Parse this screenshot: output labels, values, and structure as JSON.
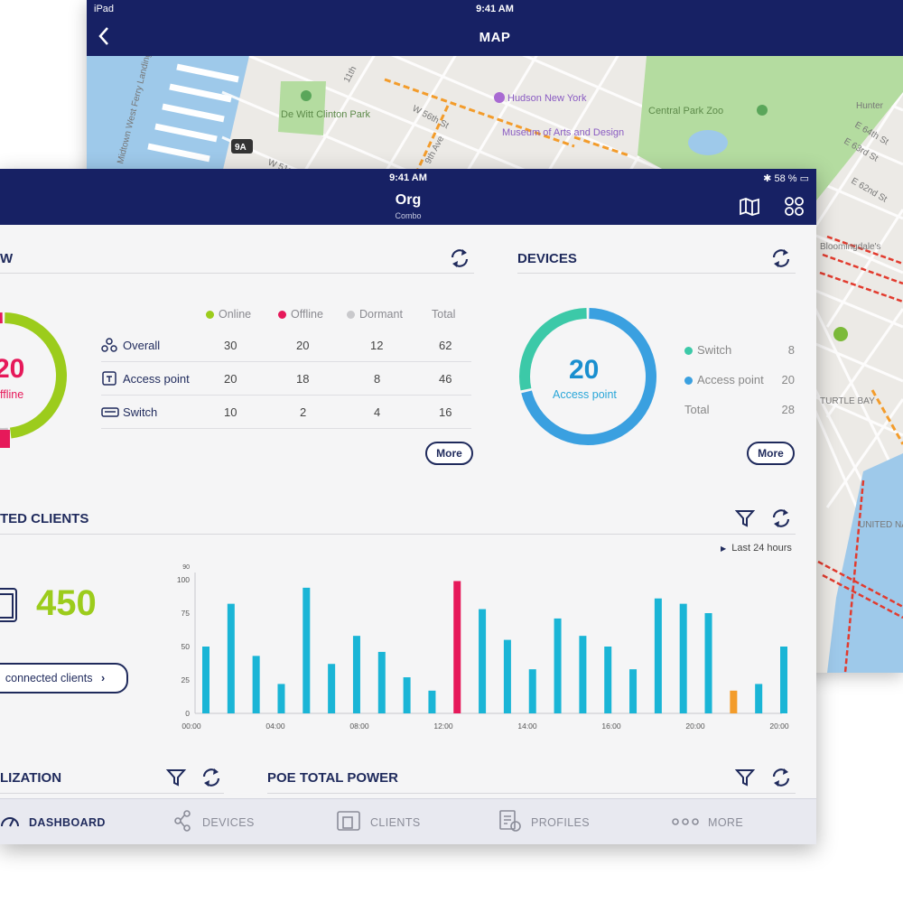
{
  "map_device": {
    "status": {
      "carrier": "iPad",
      "time": "9:41 AM"
    },
    "nav": {
      "back_icon": "chevron-left-icon",
      "title": "MAP"
    },
    "labels": {
      "de_witt_park": "De Witt Clinton Park",
      "hudson": "Hudson New York",
      "museum": "Museum of Arts and Design",
      "zoo": "Central Park Zoo",
      "w56": "W 56th St",
      "w51": "W 51st St",
      "ninth_ave": "9th Ave",
      "eleventh": "11th",
      "route_9a": "9A",
      "e63": "E 63rd St",
      "e64": "E 64th St",
      "e62": "E 62nd St",
      "turtle_bay": "TURTLE BAY",
      "un": "UNITED NATIONS",
      "hunter": "Hunter",
      "bloomingdale": "Bloomingdale's",
      "ferry": "Midtown West Ferry Landing"
    }
  },
  "app": {
    "status": {
      "time": "9:41 AM",
      "battery": "58 %"
    },
    "header": {
      "title": "Org",
      "subtitle": "Combo",
      "map_icon": "map-icon",
      "grid_icon": "grid-icon"
    },
    "overview": {
      "title": "W",
      "donut": {
        "value": "20",
        "label": "ffline",
        "online": 30,
        "offline": 20,
        "dormant": 12,
        "total": 62
      },
      "columns": {
        "online": "Online",
        "offline": "Offline",
        "dormant": "Dormant",
        "total": "Total"
      },
      "rows": [
        {
          "label": "Overall",
          "online": "30",
          "offline": "20",
          "dormant": "12",
          "total": "62",
          "icon": "nodes-icon"
        },
        {
          "label": "Access point",
          "online": "20",
          "offline": "18",
          "dormant": "8",
          "total": "46",
          "icon": "access-point-icon"
        },
        {
          "label": "Switch",
          "online": "10",
          "offline": "2",
          "dormant": "4",
          "total": "16",
          "icon": "switch-icon"
        }
      ],
      "more": "More"
    },
    "devices": {
      "title": "DEVICES",
      "donut": {
        "value": "20",
        "label": "Access point",
        "access_point": 20,
        "switch": 8,
        "total": 28
      },
      "legend": [
        {
          "label": "Switch",
          "value": "8",
          "color": "#3cc9a8"
        },
        {
          "label": "Access point",
          "value": "20",
          "color": "#3aa0e0"
        },
        {
          "label": "Total",
          "value": "28",
          "color": ""
        }
      ],
      "more": "More"
    },
    "clients": {
      "title": "TED CLIENTS",
      "count": "450",
      "button": "connected clients",
      "range": "Last 24 hours"
    },
    "utilization": {
      "title": "LIZATION"
    },
    "poe": {
      "title": "POE TOTAL POWER"
    },
    "tabs": [
      {
        "label": "DASHBOARD",
        "icon": "gauge-icon"
      },
      {
        "label": "DEVICES",
        "icon": "share-icon"
      },
      {
        "label": "CLIENTS",
        "icon": "clients-icon"
      },
      {
        "label": "PROFILES",
        "icon": "profile-icon"
      },
      {
        "label": "MORE",
        "icon": "more-dots-icon"
      }
    ],
    "colors": {
      "brand": "#172164",
      "online": "#9ccc1c",
      "offline": "#e6195a",
      "dormant": "#c9c9cc",
      "bar": "#1ab5d6",
      "bar_peak": "#e6195a",
      "bar_low": "#f39c2b",
      "access_point": "#3aa0e0",
      "switch": "#3cc9a8"
    }
  },
  "chart_data": {
    "type": "bar",
    "x": [
      "00:00",
      "01:00",
      "02:00",
      "03:00",
      "04:00",
      "05:00",
      "06:00",
      "07:00",
      "08:00",
      "09:00",
      "10:00",
      "11:00",
      "12:00",
      "13:00",
      "14:00",
      "15:00",
      "16:00",
      "17:00",
      "18:00",
      "19:00",
      "20:00",
      "21:00",
      "22:00",
      "23:00"
    ],
    "values": [
      50,
      82,
      43,
      22,
      94,
      37,
      58,
      46,
      27,
      17,
      99,
      78,
      55,
      33,
      71,
      58,
      50,
      33,
      86,
      82,
      75,
      17,
      22,
      50
    ],
    "ylim": [
      0,
      100
    ],
    "yticks": [
      0,
      25,
      50,
      75,
      100
    ],
    "ytop_label": "90",
    "xtick_labels": [
      "00:00",
      "04:00",
      "08:00",
      "12:00",
      "14:00",
      "16:00",
      "20:00",
      "20:00"
    ],
    "highlight": {
      "peak_index": 10,
      "low_index": 21
    }
  }
}
